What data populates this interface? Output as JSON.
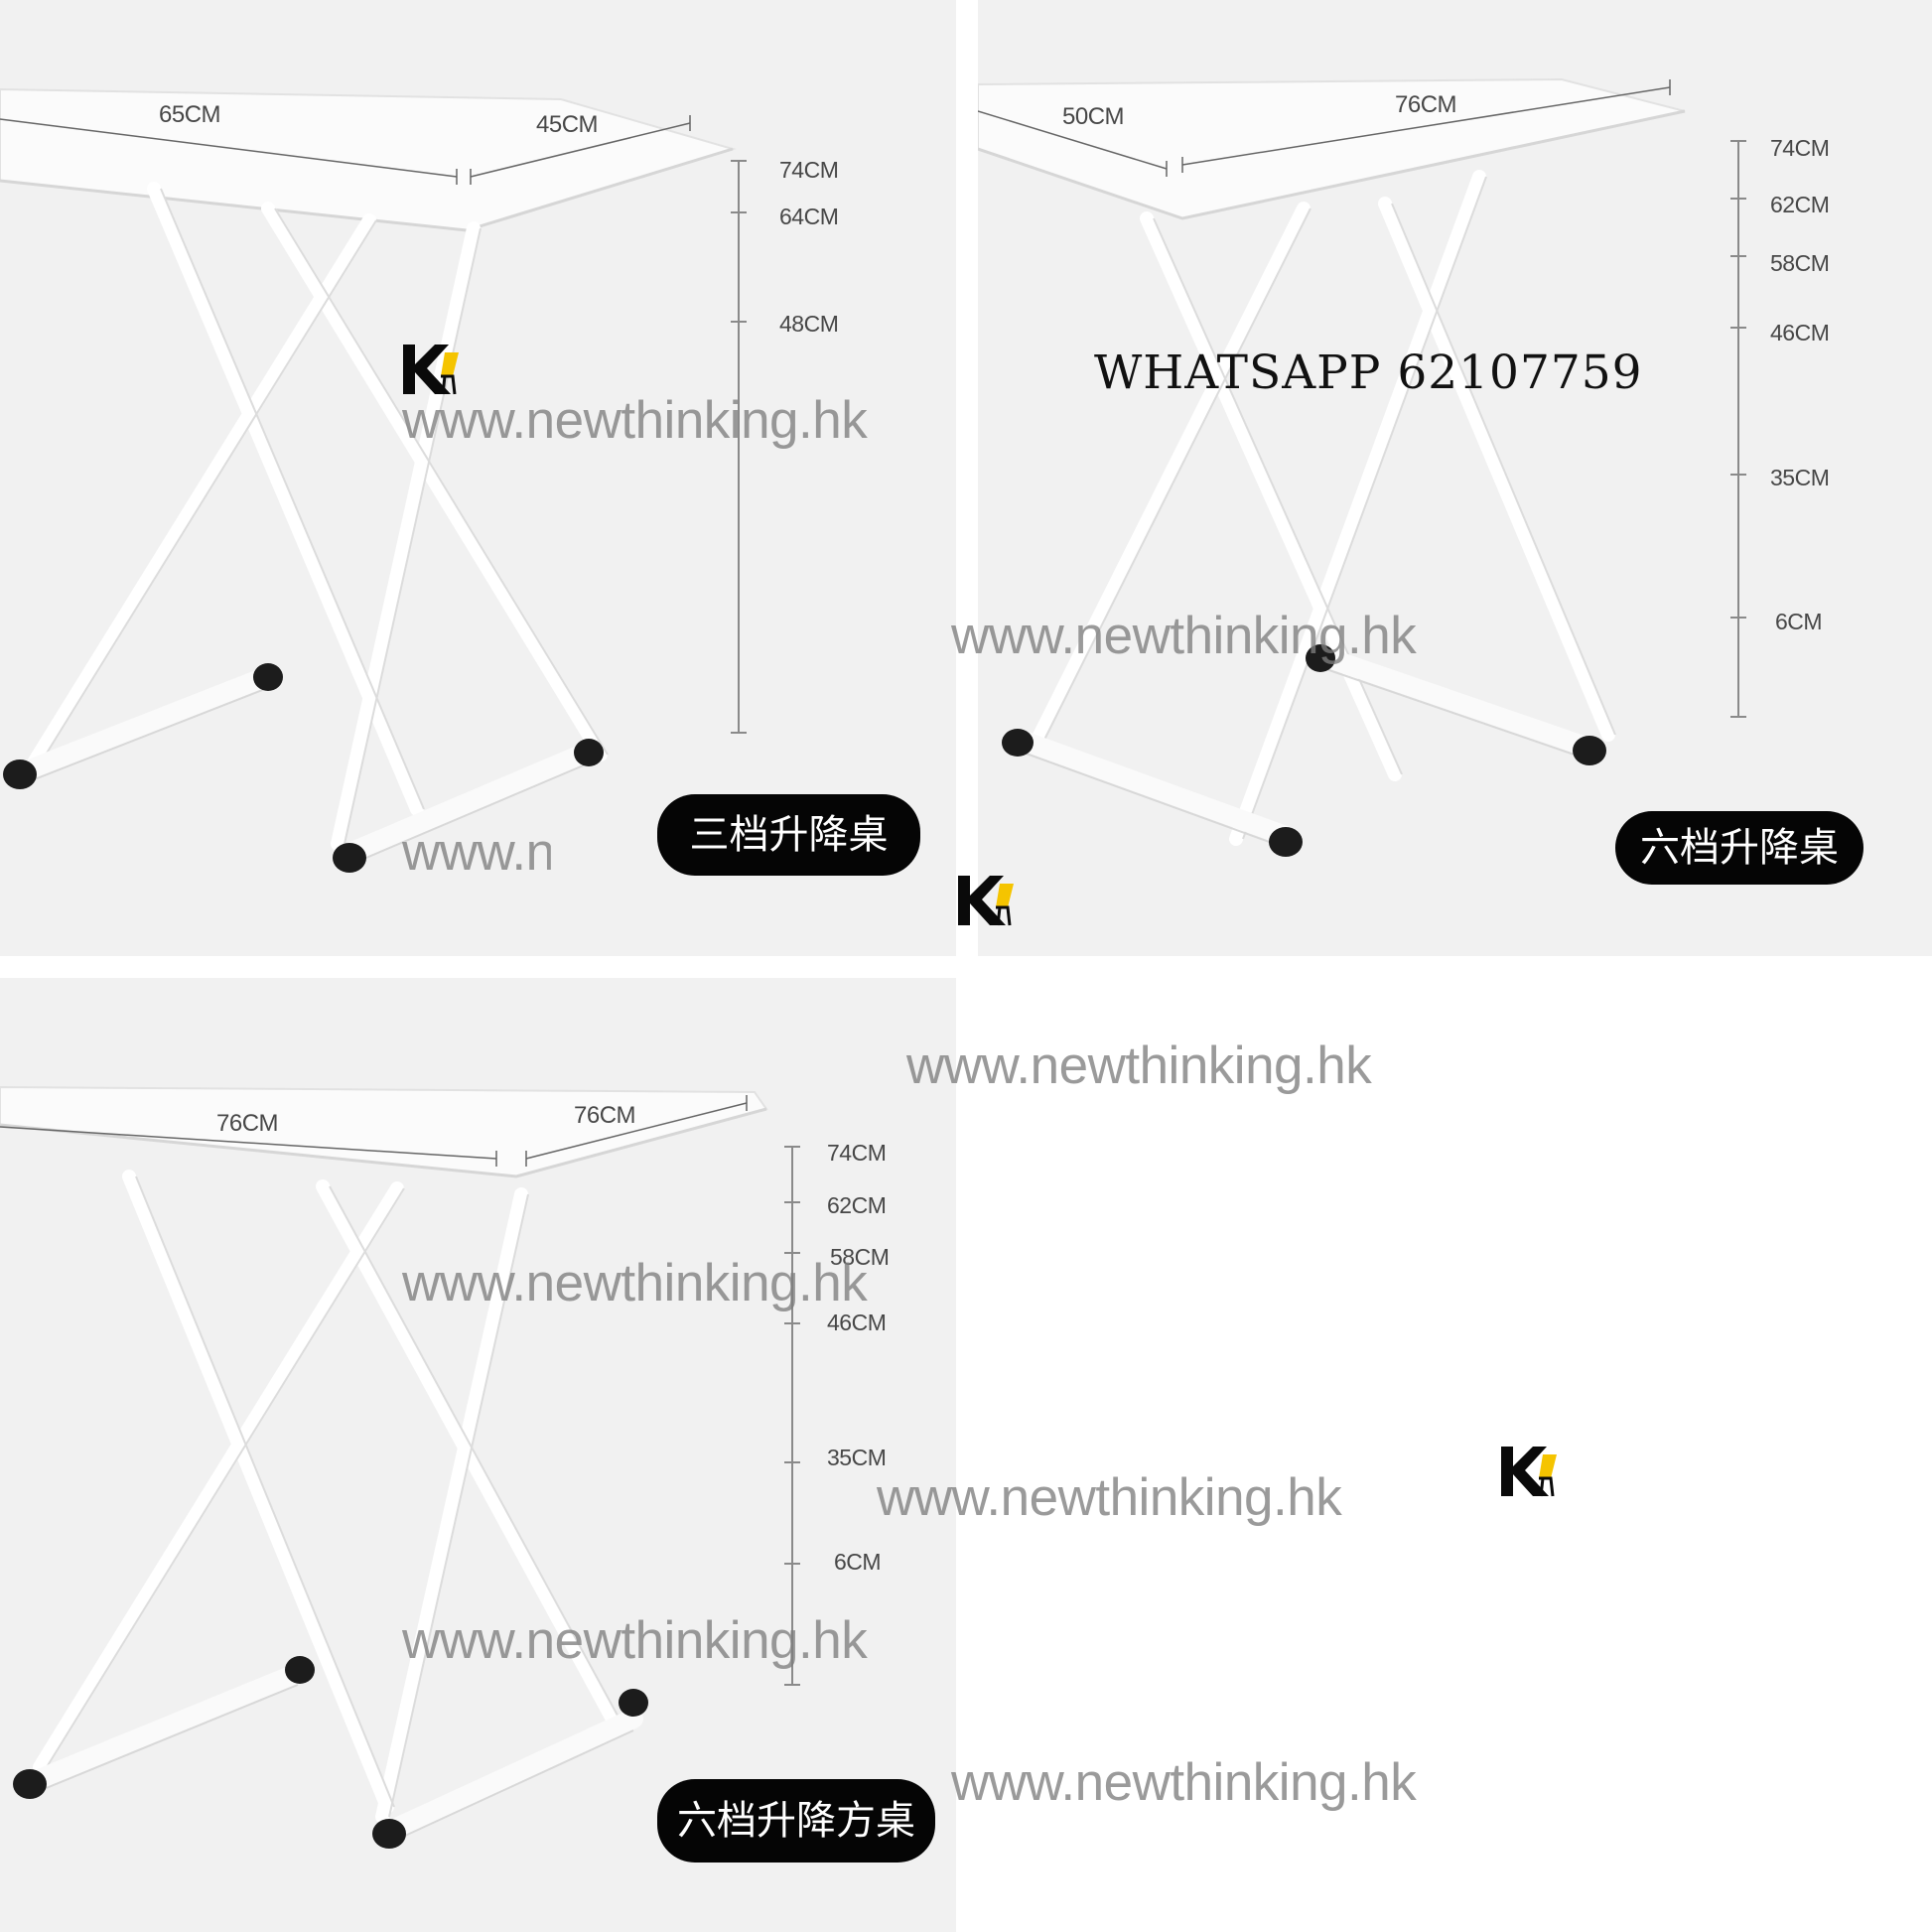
{
  "panels": [
    {
      "badge": "三档升降桌",
      "top_dims": [
        "65CM",
        "45CM"
      ],
      "heights": [
        "74CM",
        "64CM",
        "48CM"
      ]
    },
    {
      "badge": "六档升降桌",
      "top_dims": [
        "50CM",
        "76CM"
      ],
      "heights": [
        "74CM",
        "62CM",
        "58CM",
        "46CM",
        "35CM",
        "6CM"
      ]
    },
    {
      "badge": "六档升降方桌",
      "top_dims": [
        "76CM",
        "76CM"
      ],
      "heights": [
        "74CM",
        "62CM",
        "58CM",
        "46CM",
        "35CM",
        "6CM"
      ]
    }
  ],
  "watermark": "www.newthinking.hk",
  "whatsapp": "WHATSAPP 62107759",
  "logo_letter": "K",
  "colors": {
    "panel_bg": "#f1f1f1",
    "badge_bg": "#050505",
    "logo_accent": "#f5c400"
  }
}
